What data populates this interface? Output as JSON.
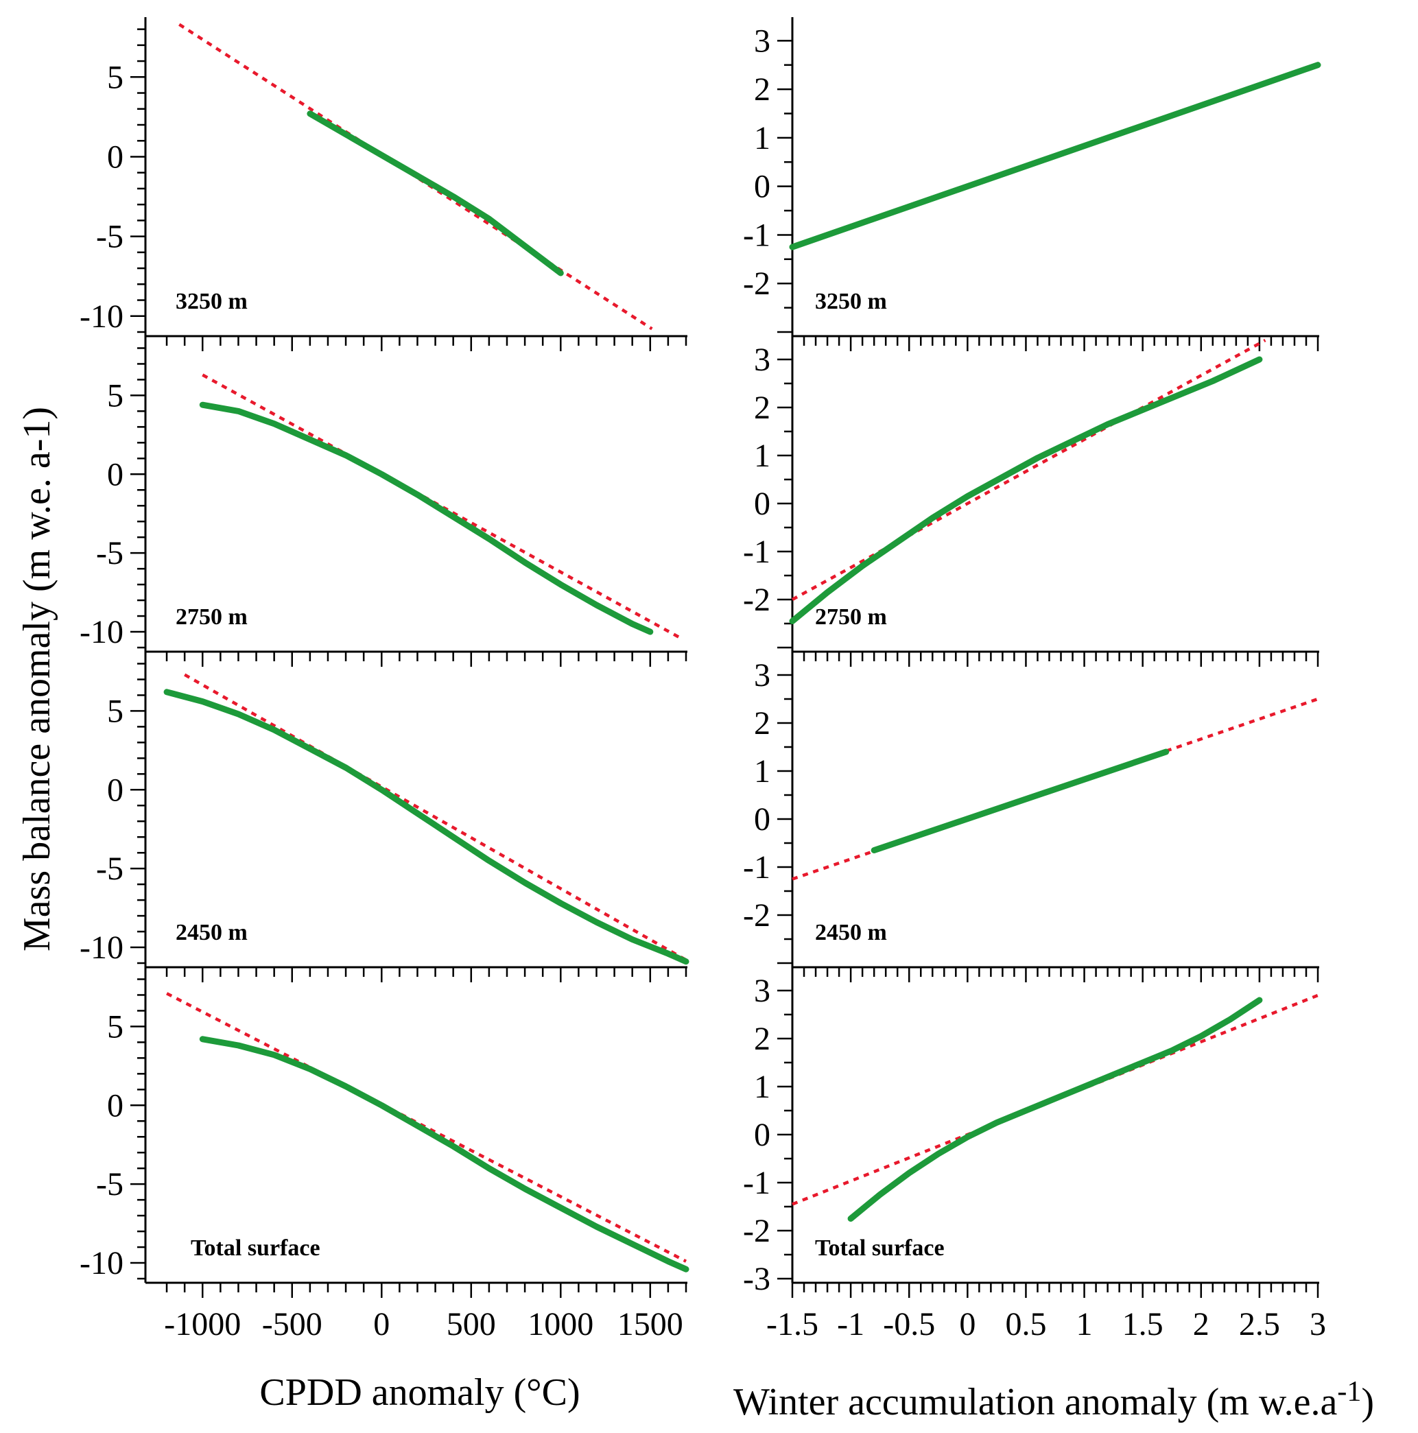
{
  "figure": {
    "y_axis_title": "Mass balance anomaly (m w.e. a-1)",
    "left_x_axis_title": "CPDD anomaly (°C)",
    "right_x_axis_title": {
      "main": "Winter accumulation anomaly (m w.e.a",
      "superscript": "-1",
      "close": ")"
    }
  },
  "colors": {
    "model_curve": "#1d9a3a",
    "linear_fit": "#e8192c",
    "axis": "#000000"
  },
  "chart_data": [
    {
      "type": "line",
      "panel_label": "3250 m",
      "column": "left",
      "row": 0,
      "xlim": [
        -1250,
        1700
      ],
      "ylim": [
        -11,
        8.5
      ],
      "y_ticks": [
        5,
        0,
        -5,
        -10
      ],
      "y_tick_labels": [
        "5",
        "0",
        "-5",
        "-10"
      ],
      "series": [
        {
          "style": "solid-green",
          "x": [
            -400,
            -200,
            0,
            200,
            400,
            600,
            800,
            1000
          ],
          "y": [
            2.7,
            1.4,
            0.1,
            -1.2,
            -2.5,
            -3.9,
            -5.6,
            -7.3
          ]
        },
        {
          "style": "dotted-red",
          "x": [
            -1130,
            1510
          ],
          "y": [
            8.3,
            -10.8
          ]
        }
      ]
    },
    {
      "type": "line",
      "panel_label": "2750 m",
      "column": "left",
      "row": 1,
      "xlim": [
        -1250,
        1700
      ],
      "ylim": [
        -11,
        8.5
      ],
      "y_ticks": [
        5,
        0,
        -5,
        -10
      ],
      "y_tick_labels": [
        "5",
        "0",
        "-5",
        "-10"
      ],
      "series": [
        {
          "style": "solid-green",
          "x": [
            -1000,
            -800,
            -600,
            -400,
            -200,
            0,
            200,
            400,
            600,
            800,
            1000,
            1200,
            1400,
            1500
          ],
          "y": [
            4.4,
            4.0,
            3.2,
            2.2,
            1.2,
            0.0,
            -1.3,
            -2.7,
            -4.1,
            -5.6,
            -7.0,
            -8.3,
            -9.5,
            -10.0
          ]
        },
        {
          "style": "dotted-red",
          "x": [
            -1000,
            1670
          ],
          "y": [
            6.3,
            -10.4
          ]
        }
      ]
    },
    {
      "type": "line",
      "panel_label": "2450 m",
      "column": "left",
      "row": 2,
      "xlim": [
        -1250,
        1700
      ],
      "ylim": [
        -11,
        8.5
      ],
      "y_ticks": [
        5,
        0,
        -5,
        -10
      ],
      "y_tick_labels": [
        "5",
        "0",
        "-5",
        "-10"
      ],
      "series": [
        {
          "style": "solid-green",
          "x": [
            -1200,
            -1000,
            -800,
            -600,
            -400,
            -200,
            0,
            200,
            400,
            600,
            800,
            1000,
            1200,
            1400,
            1600,
            1700
          ],
          "y": [
            6.2,
            5.6,
            4.8,
            3.8,
            2.6,
            1.4,
            0.0,
            -1.5,
            -3.0,
            -4.5,
            -5.9,
            -7.2,
            -8.4,
            -9.5,
            -10.4,
            -10.9
          ]
        },
        {
          "style": "dotted-red",
          "x": [
            -1100,
            1700
          ],
          "y": [
            7.3,
            -10.8
          ]
        }
      ]
    },
    {
      "type": "line",
      "panel_label": "Total surface",
      "column": "left",
      "row": 3,
      "xlim": [
        -1250,
        1700
      ],
      "ylim": [
        -11,
        8.5
      ],
      "y_ticks": [
        5,
        0,
        -5,
        -10
      ],
      "y_tick_labels": [
        "5",
        "0",
        "-5",
        "-10"
      ],
      "x_ticks": [
        -1000,
        -500,
        0,
        500,
        1000,
        1500
      ],
      "x_tick_labels": [
        "-1000",
        "-500",
        "0",
        "500",
        "1000",
        "1500"
      ],
      "series": [
        {
          "style": "solid-green",
          "x": [
            -1000,
            -800,
            -600,
            -400,
            -200,
            0,
            200,
            400,
            600,
            800,
            1000,
            1200,
            1400,
            1600,
            1700
          ],
          "y": [
            4.2,
            3.8,
            3.2,
            2.3,
            1.2,
            0.0,
            -1.3,
            -2.6,
            -4.0,
            -5.3,
            -6.5,
            -7.7,
            -8.8,
            -9.9,
            -10.4
          ]
        },
        {
          "style": "dotted-red",
          "x": [
            -1200,
            1700
          ],
          "y": [
            7.1,
            -9.9
          ]
        }
      ]
    },
    {
      "type": "line",
      "panel_label": "3250 m",
      "column": "right",
      "row": 0,
      "xlim": [
        -1.5,
        3
      ],
      "ylim": [
        -3,
        3.4
      ],
      "y_ticks": [
        3,
        2,
        1,
        0,
        -1,
        -2
      ],
      "y_tick_labels": [
        "3",
        "2",
        "1",
        "0",
        "-1",
        "-2"
      ],
      "series": [
        {
          "style": "solid-green",
          "x": [
            -1.5,
            3.0
          ],
          "y": [
            -1.25,
            2.5
          ]
        },
        {
          "style": "dotted-red",
          "x": [
            -1.5,
            3.0
          ],
          "y": [
            -1.25,
            2.5
          ]
        }
      ]
    },
    {
      "type": "line",
      "panel_label": "2750 m",
      "column": "right",
      "row": 1,
      "xlim": [
        -1.5,
        3
      ],
      "ylim": [
        -3,
        3.4
      ],
      "y_ticks": [
        3,
        2,
        1,
        0,
        -1,
        -2
      ],
      "y_tick_labels": [
        "3",
        "2",
        "1",
        "0",
        "-1",
        "-2"
      ],
      "series": [
        {
          "style": "solid-green",
          "x": [
            -1.5,
            -1.2,
            -0.9,
            -0.6,
            -0.3,
            0.0,
            0.3,
            0.6,
            0.9,
            1.2,
            1.5,
            1.8,
            2.1,
            2.5
          ],
          "y": [
            -2.45,
            -1.85,
            -1.3,
            -0.8,
            -0.3,
            0.15,
            0.55,
            0.95,
            1.3,
            1.65,
            1.95,
            2.25,
            2.55,
            3.0
          ]
        },
        {
          "style": "dotted-red",
          "x": [
            -1.5,
            2.55
          ],
          "y": [
            -2.0,
            3.4
          ]
        }
      ]
    },
    {
      "type": "line",
      "panel_label": "2450 m",
      "column": "right",
      "row": 2,
      "xlim": [
        -1.5,
        3
      ],
      "ylim": [
        -3,
        3.4
      ],
      "y_ticks": [
        3,
        2,
        1,
        0,
        -1,
        -2
      ],
      "y_tick_labels": [
        "3",
        "2",
        "1",
        "0",
        "-1",
        "-2"
      ],
      "series": [
        {
          "style": "solid-green",
          "x": [
            -0.8,
            1.7
          ],
          "y": [
            -0.65,
            1.4
          ]
        },
        {
          "style": "dotted-red",
          "x": [
            -1.5,
            3.0
          ],
          "y": [
            -1.25,
            2.5
          ]
        }
      ]
    },
    {
      "type": "line",
      "panel_label": "Total surface",
      "column": "right",
      "row": 3,
      "xlim": [
        -1.5,
        3
      ],
      "ylim": [
        -3,
        3.4
      ],
      "y_ticks": [
        3,
        2,
        1,
        0,
        -1,
        -2,
        -3
      ],
      "y_tick_labels": [
        "3",
        "2",
        "1",
        "0",
        "-1",
        "-2",
        "-3"
      ],
      "x_ticks": [
        -1.5,
        -1,
        -0.5,
        0,
        0.5,
        1,
        1.5,
        2,
        2.5,
        3
      ],
      "x_tick_labels": [
        "-1.5",
        "-1",
        "-0.5",
        "0",
        "0.5",
        "1",
        "1.5",
        "2",
        "2.5",
        "3"
      ],
      "series": [
        {
          "style": "solid-green",
          "x": [
            -1.0,
            -0.75,
            -0.5,
            -0.25,
            0.0,
            0.25,
            0.5,
            0.75,
            1.0,
            1.25,
            1.5,
            1.75,
            2.0,
            2.25,
            2.5
          ],
          "y": [
            -1.75,
            -1.25,
            -0.8,
            -0.4,
            -0.05,
            0.25,
            0.5,
            0.75,
            1.0,
            1.25,
            1.5,
            1.75,
            2.05,
            2.4,
            2.8
          ]
        },
        {
          "style": "dotted-red",
          "x": [
            -1.5,
            3.0
          ],
          "y": [
            -1.45,
            2.9
          ]
        }
      ]
    }
  ]
}
